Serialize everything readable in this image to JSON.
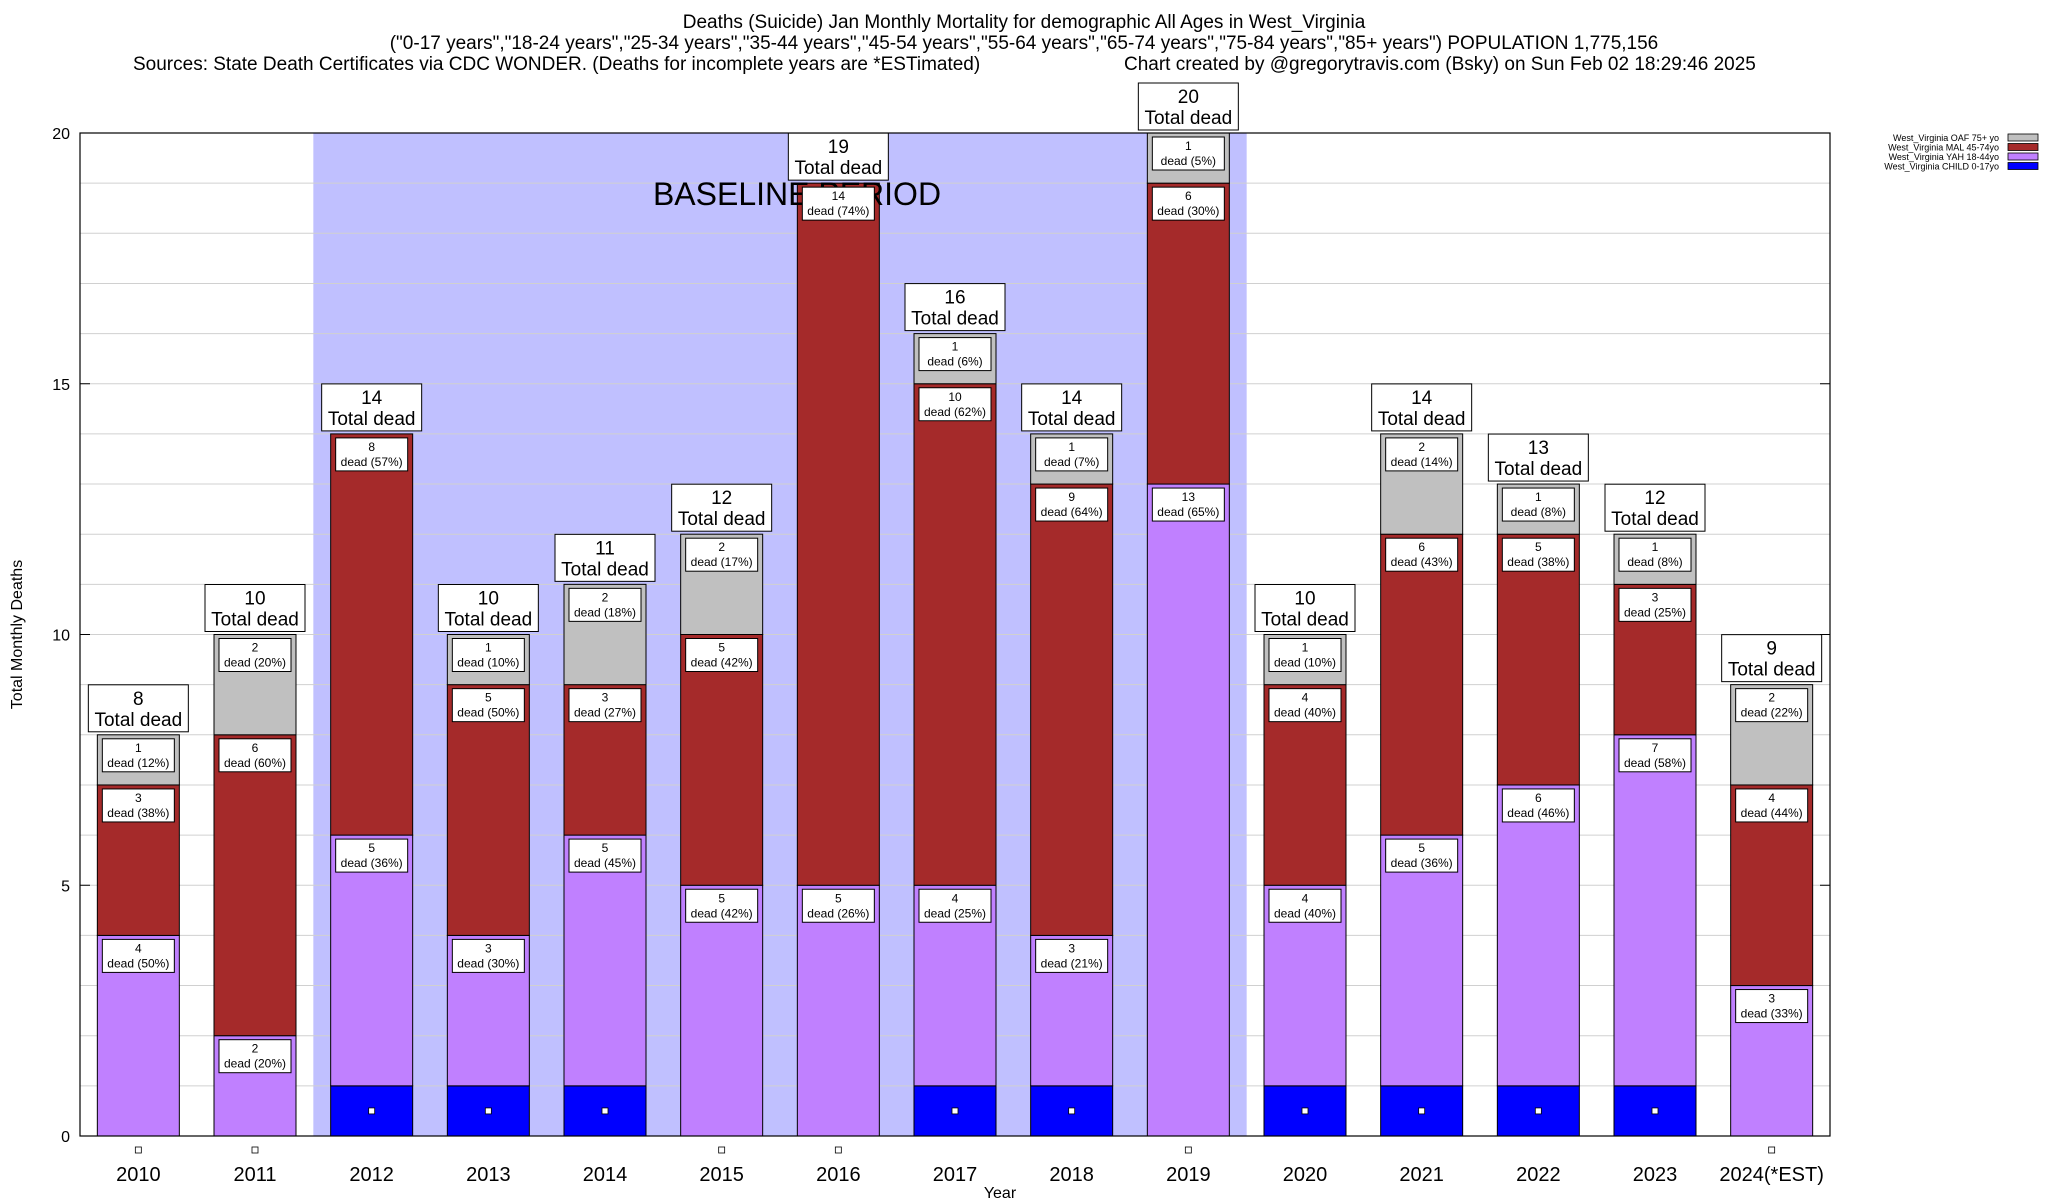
{
  "header": {
    "title": "Deaths (Suicide) Jan Monthly Mortality for demographic All Ages in West_Virginia",
    "subtitle": "(\"0-17 years\",\"18-24 years\",\"25-34 years\",\"35-44 years\",\"45-54 years\",\"55-64 years\",\"65-74 years\",\"75-84 years\",\"85+ years\") POPULATION 1,775,156",
    "sources": "Sources: State Death Certificates via CDC WONDER. (Deaths for incomplete years are *ESTimated)",
    "credit": "Chart created by @gregorytravis.com (Bsky) on Sun Feb 02 18:29:46 2025"
  },
  "chart_data": {
    "type": "bar",
    "stacked": true,
    "xlabel": "Year",
    "ylabel": "Total Monthly Deaths",
    "ylim": [
      0,
      20
    ],
    "yticks": [
      0,
      5,
      10,
      15,
      20
    ],
    "y_minor_step": 1,
    "grid": true,
    "legend_position": "top-right",
    "categories": [
      "2010",
      "2011",
      "2012",
      "2013",
      "2014",
      "2015",
      "2016",
      "2017",
      "2018",
      "2019",
      "2020",
      "2021",
      "2022",
      "2023",
      "2024(*EST)"
    ],
    "baseline": {
      "label": "BASELINE PERIOD",
      "from": "2012",
      "to": "2019",
      "color": "#c0c0ff"
    },
    "total_suffix": "Total dead",
    "segment_label_prefix": "dead",
    "series": [
      {
        "name": "West_Virginia CHILD 0-17yo",
        "color": "#0000ff",
        "values": [
          0,
          0,
          1,
          1,
          1,
          0,
          0,
          1,
          1,
          0,
          1,
          1,
          1,
          1,
          0
        ]
      },
      {
        "name": "West_Virginia YAH 18-44yo",
        "color": "#c080ff",
        "values": [
          4,
          2,
          5,
          3,
          5,
          5,
          5,
          4,
          3,
          13,
          4,
          5,
          6,
          7,
          3
        ]
      },
      {
        "name": "West_Virginia MAL 45-74yo",
        "color": "#a52a2a",
        "values": [
          3,
          6,
          8,
          5,
          3,
          5,
          14,
          10,
          9,
          6,
          4,
          6,
          5,
          3,
          4
        ]
      },
      {
        "name": "West_Virginia OAF 75+ yo",
        "color": "#c0c0c0",
        "values": [
          1,
          2,
          0,
          1,
          2,
          2,
          0,
          1,
          1,
          1,
          1,
          2,
          1,
          1,
          2
        ]
      }
    ],
    "totals": [
      8,
      10,
      14,
      10,
      11,
      12,
      19,
      16,
      14,
      20,
      10,
      14,
      13,
      12,
      9
    ],
    "segment_labels": [
      [
        null,
        "dead (50%)",
        "dead (38%)",
        "dead (12%)"
      ],
      [
        null,
        "dead (20%)",
        "dead (60%)",
        "dead (20%)"
      ],
      [
        null,
        "dead (36%)",
        "dead (57%)",
        null
      ],
      [
        null,
        "dead (30%)",
        "dead (50%)",
        "dead (10%)"
      ],
      [
        null,
        "dead (45%)",
        "dead (27%)",
        "dead (18%)"
      ],
      [
        null,
        "dead (42%)",
        "dead (42%)",
        "dead (17%)"
      ],
      [
        null,
        "dead (26%)",
        "dead (74%)",
        null
      ],
      [
        null,
        "dead (25%)",
        "dead (62%)",
        "dead (6%)"
      ],
      [
        null,
        "dead (21%)",
        "dead (64%)",
        "dead (7%)"
      ],
      [
        null,
        "dead (65%)",
        "dead (30%)",
        "dead (5%)"
      ],
      [
        null,
        "dead (40%)",
        "dead (40%)",
        "dead (10%)"
      ],
      [
        null,
        "dead (36%)",
        "dead (43%)",
        "dead (14%)"
      ],
      [
        null,
        "dead (46%)",
        "dead (38%)",
        "dead (8%)"
      ],
      [
        null,
        "dead (58%)",
        "dead (25%)",
        "dead (8%)"
      ],
      [
        null,
        "dead (33%)",
        "dead (44%)",
        "dead (22%)"
      ]
    ]
  }
}
